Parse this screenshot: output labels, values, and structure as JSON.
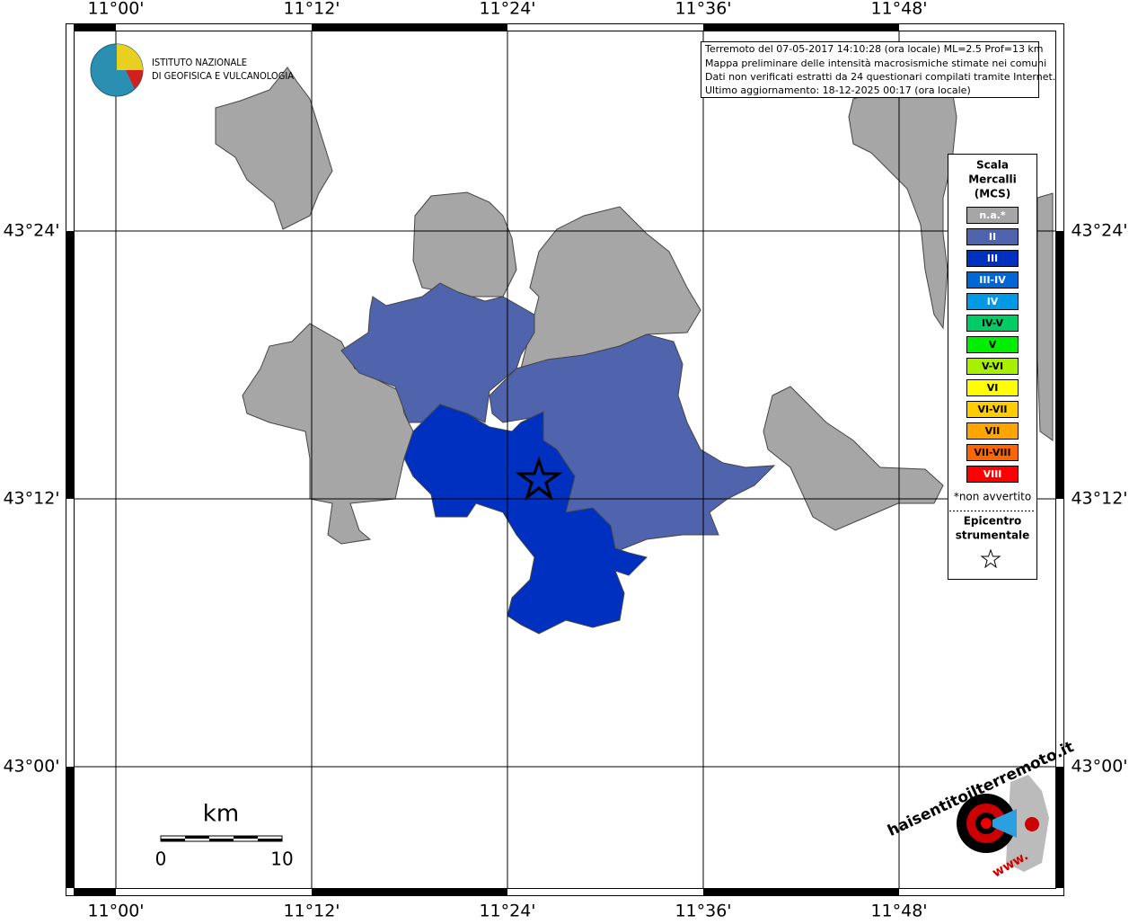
{
  "axis_labels": {
    "top": [
      "11°00'",
      "11°12'",
      "11°24'",
      "11°36'",
      "11°48'"
    ],
    "bottom": [
      "11°00'",
      "11°12'",
      "11°24'",
      "11°36'",
      "11°48'"
    ],
    "left": [
      "43°24'",
      "43°12'",
      "43°00'"
    ],
    "right": [
      "43°24'",
      "43°12'",
      "43°00'"
    ]
  },
  "institute": {
    "line1": "ISTITUTO NAZIONALE",
    "line2": "DI GEOFISICA E VULCANOLOGIA"
  },
  "info": [
    "Terremoto del 07-05-2017 14:10:28 (ora locale) ML=2.5 Prof=13 km",
    "Mappa preliminare delle intensità macrosismiche stimate nei comuni",
    "Dati non verificati estratti da 24 questionari compilati tramite Internet.",
    "Ultimo aggiornamento: 18-12-2025 00:17 (ora locale)"
  ],
  "legend": {
    "title": [
      "Scala",
      "Mercalli",
      "(MCS)"
    ],
    "entries": [
      {
        "label": "n.a.*",
        "color": "#a6a6a6",
        "text": "#ffffff"
      },
      {
        "label": "II",
        "color": "#4f64ac",
        "text": "#ffffff"
      },
      {
        "label": "III",
        "color": "#0030c0",
        "text": "#ffffff"
      },
      {
        "label": "III-IV",
        "color": "#0066d6",
        "text": "#ffffff"
      },
      {
        "label": "IV",
        "color": "#0099e6",
        "text": "#ffffff"
      },
      {
        "label": "IV-V",
        "color": "#00cc66",
        "text": "#000000"
      },
      {
        "label": "V",
        "color": "#00ee00",
        "text": "#000000"
      },
      {
        "label": "V-VI",
        "color": "#a6f000",
        "text": "#000000"
      },
      {
        "label": "VI",
        "color": "#ffff00",
        "text": "#000000"
      },
      {
        "label": "VI-VII",
        "color": "#ffcc00",
        "text": "#000000"
      },
      {
        "label": "VII",
        "color": "#ffa500",
        "text": "#000000"
      },
      {
        "label": "VII-VIII",
        "color": "#ff6600",
        "text": "#000000"
      },
      {
        "label": "VIII",
        "color": "#ff0000",
        "text": "#ffffff"
      }
    ],
    "note": "*non avvertito",
    "epicenter": [
      "Epicentro",
      "strumentale"
    ]
  },
  "scale": {
    "unit": "km",
    "min": "0",
    "max": "10"
  },
  "site": {
    "www": "www.",
    "name": "haisentitoilterremoto.it"
  }
}
